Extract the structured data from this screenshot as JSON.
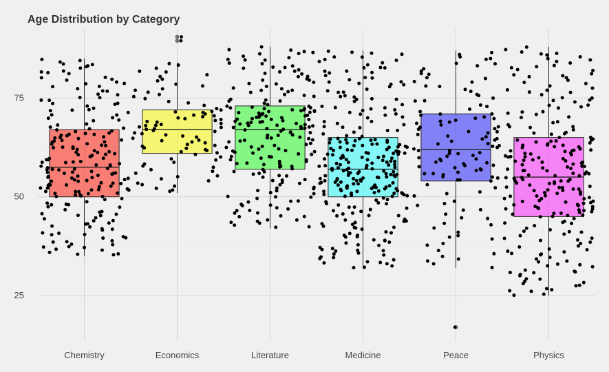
{
  "chart_data": {
    "type": "box",
    "title": "Age Distribution by Category",
    "xlabel": "",
    "ylabel": "",
    "categories": [
      "Chemistry",
      "Economics",
      "Literature",
      "Medicine",
      "Peace",
      "Physics"
    ],
    "y_ticks": [
      25,
      50,
      75
    ],
    "ylim": [
      13.5,
      92.5
    ],
    "grid": true,
    "legend": "none",
    "boxes": [
      {
        "category": "Chemistry",
        "min": 35,
        "q1": 50,
        "median": 57.5,
        "q3": 67,
        "max": 85,
        "color": "#f8766d",
        "point_count": 200,
        "outliers": []
      },
      {
        "category": "Economics",
        "min": 51,
        "q1": 61,
        "median": 67,
        "q3": 72,
        "max": 84,
        "color": "#f5f56b",
        "point_count": 85,
        "outliers": [
          89.5,
          90.5
        ]
      },
      {
        "category": "Literature",
        "min": 42,
        "q1": 57,
        "median": 67,
        "q3": 73,
        "max": 88,
        "color": "#7cf67c",
        "point_count": 190,
        "outliers": []
      },
      {
        "category": "Medicine",
        "min": 32,
        "q1": 50,
        "median": 57,
        "q3": 65,
        "max": 87,
        "color": "#7df6f6",
        "point_count": 260,
        "outliers": []
      },
      {
        "category": "Peace",
        "min": 32,
        "q1": 54,
        "median": 62,
        "q3": 71,
        "max": 87,
        "color": "#7b7bf6",
        "point_count": 120,
        "outliers": [
          17
        ]
      },
      {
        "category": "Physics",
        "min": 25,
        "q1": 45,
        "median": 55,
        "q3": 65,
        "max": 88,
        "color": "#f67cf6",
        "point_count": 230,
        "outliers": []
      }
    ],
    "box_border_color": "#222222",
    "point_color": "#000000",
    "outlier_color": "#777777"
  }
}
